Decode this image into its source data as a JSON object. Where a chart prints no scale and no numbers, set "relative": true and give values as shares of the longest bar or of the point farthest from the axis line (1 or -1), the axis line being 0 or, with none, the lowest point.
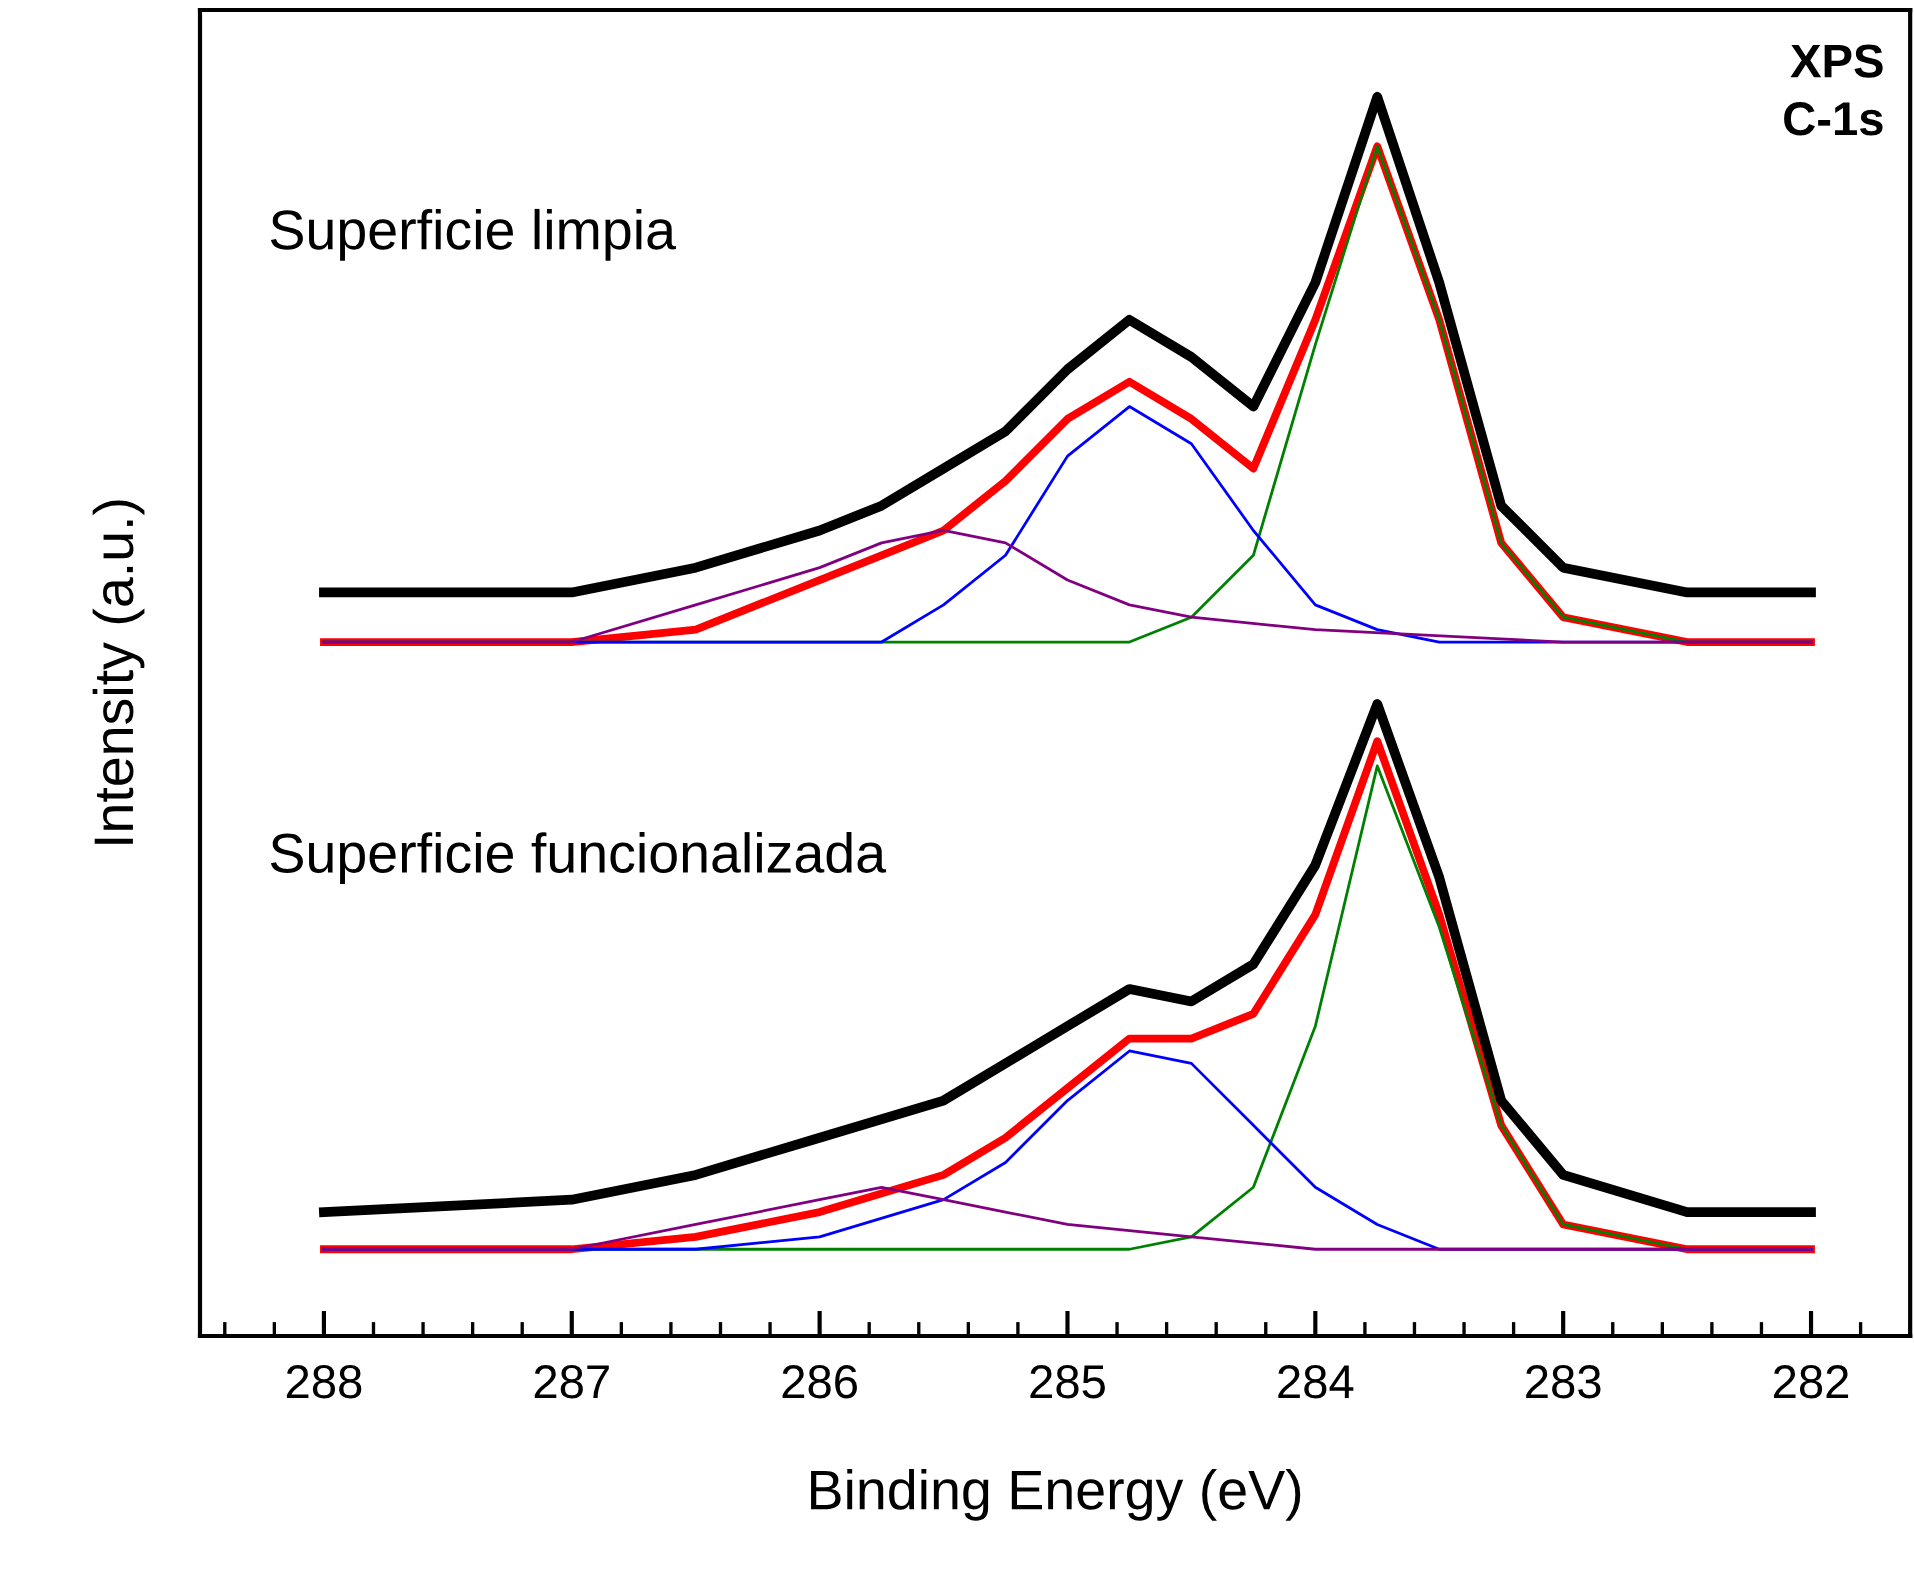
{
  "chart_data": {
    "type": "line",
    "relative": true,
    "xlabel": "Binding Energy (eV)",
    "ylabel": "Intensity (a.u.)",
    "xlim": [
      288.5,
      281.6
    ],
    "xticks": [
      288,
      287,
      286,
      285,
      284,
      283,
      282
    ],
    "tick_labels": "x",
    "grid": false,
    "legend": false,
    "marker": "none",
    "line_style": "solid",
    "annotations": [
      "Superficie limpia",
      "Superficie funcionalizada",
      "XPS\nC-1s"
    ],
    "series": [
      {
        "color": "#000000",
        "x": [
          288,
          287.5,
          287,
          286.5,
          286,
          285.75,
          285.5,
          285.25,
          285,
          284.75,
          284.5,
          284.25,
          284,
          283.75,
          283.5,
          283.25,
          283,
          282.5,
          282
        ],
        "values": [
          0.6,
          0.6,
          0.6,
          0.62,
          0.65,
          0.67,
          0.7,
          0.73,
          0.78,
          0.82,
          0.79,
          0.75,
          0.85,
          1.0,
          0.85,
          0.67,
          0.62,
          0.6,
          0.6
        ]
      },
      {
        "color": "#ff0000",
        "x": [
          288,
          287,
          286.5,
          286,
          285.75,
          285.5,
          285.25,
          285,
          284.75,
          284.5,
          284.25,
          284,
          283.75,
          283.5,
          283.25,
          283,
          282.5,
          282
        ],
        "values": [
          0.56,
          0.56,
          0.57,
          0.61,
          0.63,
          0.65,
          0.69,
          0.74,
          0.77,
          0.74,
          0.7,
          0.82,
          0.96,
          0.82,
          0.64,
          0.58,
          0.56,
          0.56
        ]
      },
      {
        "color": "#008000",
        "x": [
          288,
          284.75,
          284.5,
          284.25,
          284,
          283.75,
          283.5,
          283.25,
          283,
          282.5,
          282
        ],
        "values": [
          0.56,
          0.56,
          0.58,
          0.63,
          0.8,
          0.96,
          0.82,
          0.64,
          0.58,
          0.56,
          0.56
        ]
      },
      {
        "color": "#0000ff",
        "x": [
          288,
          286,
          285.75,
          285.5,
          285.25,
          285,
          284.75,
          284.5,
          284.25,
          284,
          283.75,
          283.5,
          282
        ],
        "values": [
          0.56,
          0.56,
          0.56,
          0.59,
          0.63,
          0.71,
          0.75,
          0.72,
          0.65,
          0.59,
          0.57,
          0.56,
          0.56
        ]
      },
      {
        "color": "#800080",
        "x": [
          288,
          287,
          286.5,
          286,
          285.75,
          285.5,
          285.25,
          285,
          284.75,
          284.5,
          284,
          283,
          282
        ],
        "values": [
          0.56,
          0.56,
          0.59,
          0.62,
          0.64,
          0.65,
          0.64,
          0.61,
          0.59,
          0.58,
          0.57,
          0.56,
          0.56
        ]
      },
      {
        "color": "#000000",
        "x": [
          288,
          287,
          286.5,
          286,
          285.5,
          285.25,
          285,
          284.75,
          284.5,
          284.25,
          284,
          283.75,
          283.5,
          283.25,
          283,
          282.5,
          282
        ],
        "values": [
          0.1,
          0.11,
          0.13,
          0.16,
          0.19,
          0.22,
          0.25,
          0.28,
          0.27,
          0.3,
          0.38,
          0.51,
          0.37,
          0.19,
          0.13,
          0.1,
          0.1
        ]
      },
      {
        "color": "#ff0000",
        "x": [
          288,
          287,
          286.5,
          286,
          285.5,
          285.25,
          285,
          284.75,
          284.5,
          284.25,
          284,
          283.75,
          283.5,
          283.25,
          283,
          282.5,
          282
        ],
        "values": [
          0.07,
          0.07,
          0.08,
          0.1,
          0.13,
          0.16,
          0.2,
          0.24,
          0.24,
          0.26,
          0.34,
          0.48,
          0.34,
          0.17,
          0.09,
          0.07,
          0.07
        ]
      },
      {
        "color": "#008000",
        "x": [
          288,
          284.75,
          284.5,
          284.25,
          284,
          283.75,
          283.5,
          283.25,
          283,
          282.5,
          282
        ],
        "values": [
          0.07,
          0.07,
          0.08,
          0.12,
          0.25,
          0.46,
          0.33,
          0.17,
          0.09,
          0.07,
          0.07
        ]
      },
      {
        "color": "#0000ff",
        "x": [
          288,
          286.5,
          286,
          285.5,
          285.25,
          285,
          284.75,
          284.5,
          284.25,
          284,
          283.75,
          283.5,
          283,
          282
        ],
        "values": [
          0.07,
          0.07,
          0.08,
          0.11,
          0.14,
          0.19,
          0.23,
          0.22,
          0.17,
          0.12,
          0.09,
          0.07,
          0.07,
          0.07
        ]
      },
      {
        "color": "#800080",
        "x": [
          288,
          287,
          286.5,
          286,
          285.75,
          285.5,
          285.25,
          285,
          284.5,
          284,
          282
        ],
        "values": [
          0.07,
          0.07,
          0.09,
          0.11,
          0.12,
          0.11,
          0.1,
          0.09,
          0.08,
          0.07,
          0.07
        ]
      }
    ]
  }
}
